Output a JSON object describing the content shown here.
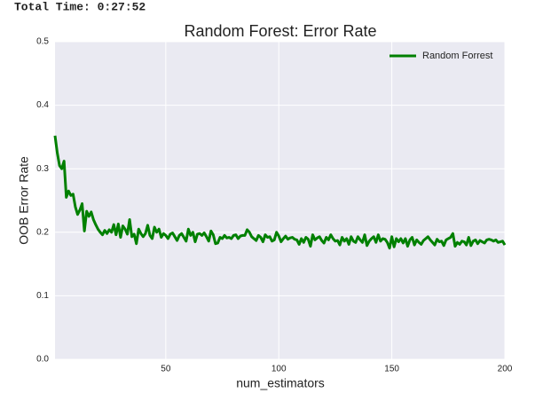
{
  "chart_data": {
    "type": "line",
    "annotation": "Total Time: 0:27:52",
    "title": "Random Forest: Error Rate",
    "xlabel": "num_estimators",
    "ylabel": "OOB Error Rate",
    "x": [
      1,
      2,
      3,
      4,
      5,
      6,
      7,
      8,
      9,
      10,
      11,
      12,
      13,
      14,
      15,
      16,
      17,
      18,
      19,
      20,
      21,
      22,
      23,
      24,
      25,
      26,
      27,
      28,
      29,
      30,
      31,
      32,
      33,
      34,
      35,
      36,
      37,
      38,
      39,
      40,
      41,
      42,
      43,
      44,
      45,
      46,
      47,
      48,
      49,
      50,
      51,
      52,
      53,
      54,
      55,
      56,
      57,
      58,
      59,
      60,
      61,
      62,
      63,
      64,
      65,
      66,
      67,
      68,
      69,
      70,
      71,
      72,
      73,
      74,
      75,
      76,
      77,
      78,
      79,
      80,
      81,
      82,
      83,
      84,
      85,
      86,
      87,
      88,
      89,
      90,
      91,
      92,
      93,
      94,
      95,
      96,
      97,
      98,
      99,
      100,
      101,
      102,
      103,
      104,
      105,
      106,
      107,
      108,
      109,
      110,
      111,
      112,
      113,
      114,
      115,
      116,
      117,
      118,
      119,
      120,
      121,
      122,
      123,
      124,
      125,
      126,
      127,
      128,
      129,
      130,
      131,
      132,
      133,
      134,
      135,
      136,
      137,
      138,
      139,
      140,
      141,
      142,
      143,
      144,
      145,
      146,
      147,
      148,
      149,
      150,
      151,
      152,
      153,
      154,
      155,
      156,
      157,
      158,
      159,
      160,
      161,
      162,
      163,
      164,
      165,
      166,
      167,
      168,
      169,
      170,
      171,
      172,
      173,
      174,
      175,
      176,
      177,
      178,
      179,
      180,
      181,
      182,
      183,
      184,
      185,
      186,
      187,
      188,
      189,
      190,
      191,
      192,
      193,
      194,
      195,
      196,
      197,
      198,
      199,
      200
    ],
    "series": [
      {
        "name": "Random Forrest",
        "color": "#008000",
        "values": [
          0.352,
          0.325,
          0.305,
          0.3,
          0.312,
          0.255,
          0.265,
          0.258,
          0.26,
          0.24,
          0.228,
          0.235,
          0.245,
          0.202,
          0.233,
          0.225,
          0.232,
          0.22,
          0.212,
          0.205,
          0.2,
          0.196,
          0.203,
          0.198,
          0.204,
          0.2,
          0.212,
          0.196,
          0.213,
          0.192,
          0.21,
          0.205,
          0.197,
          0.22,
          0.193,
          0.197,
          0.182,
          0.205,
          0.198,
          0.193,
          0.198,
          0.211,
          0.195,
          0.19,
          0.208,
          0.2,
          0.205,
          0.192,
          0.198,
          0.195,
          0.19,
          0.197,
          0.199,
          0.193,
          0.187,
          0.195,
          0.198,
          0.192,
          0.186,
          0.205,
          0.195,
          0.2,
          0.185,
          0.197,
          0.198,
          0.195,
          0.199,
          0.193,
          0.186,
          0.202,
          0.196,
          0.182,
          0.183,
          0.192,
          0.19,
          0.195,
          0.191,
          0.192,
          0.19,
          0.195,
          0.196,
          0.19,
          0.194,
          0.195,
          0.195,
          0.204,
          0.2,
          0.193,
          0.19,
          0.187,
          0.195,
          0.192,
          0.185,
          0.196,
          0.192,
          0.193,
          0.186,
          0.188,
          0.2,
          0.194,
          0.185,
          0.19,
          0.194,
          0.189,
          0.191,
          0.192,
          0.189,
          0.188,
          0.181,
          0.19,
          0.184,
          0.192,
          0.189,
          0.178,
          0.196,
          0.188,
          0.191,
          0.193,
          0.187,
          0.183,
          0.192,
          0.188,
          0.196,
          0.19,
          0.186,
          0.187,
          0.18,
          0.192,
          0.186,
          0.19,
          0.181,
          0.193,
          0.186,
          0.184,
          0.193,
          0.188,
          0.184,
          0.196,
          0.179,
          0.186,
          0.19,
          0.193,
          0.184,
          0.196,
          0.186,
          0.19,
          0.189,
          0.184,
          0.175,
          0.193,
          0.177,
          0.19,
          0.185,
          0.19,
          0.183,
          0.19,
          0.178,
          0.188,
          0.192,
          0.18,
          0.188,
          0.184,
          0.181,
          0.187,
          0.19,
          0.193,
          0.188,
          0.184,
          0.18,
          0.189,
          0.185,
          0.186,
          0.179,
          0.188,
          0.19,
          0.192,
          0.198,
          0.178,
          0.184,
          0.181,
          0.186,
          0.185,
          0.18,
          0.192,
          0.179,
          0.186,
          0.188,
          0.182,
          0.187,
          0.185,
          0.183,
          0.188,
          0.189,
          0.188,
          0.186,
          0.188,
          0.184,
          0.185,
          0.186,
          0.18
        ]
      }
    ],
    "xlim": [
      1,
      200
    ],
    "xticks": [
      50,
      100,
      150,
      200
    ],
    "ylim": [
      0,
      0.5
    ],
    "yticks": [
      {
        "value": 0,
        "label": "0.0"
      },
      0.1,
      0.2,
      0.3,
      0.4,
      0.5
    ],
    "grid": true,
    "legend": "upper right"
  }
}
